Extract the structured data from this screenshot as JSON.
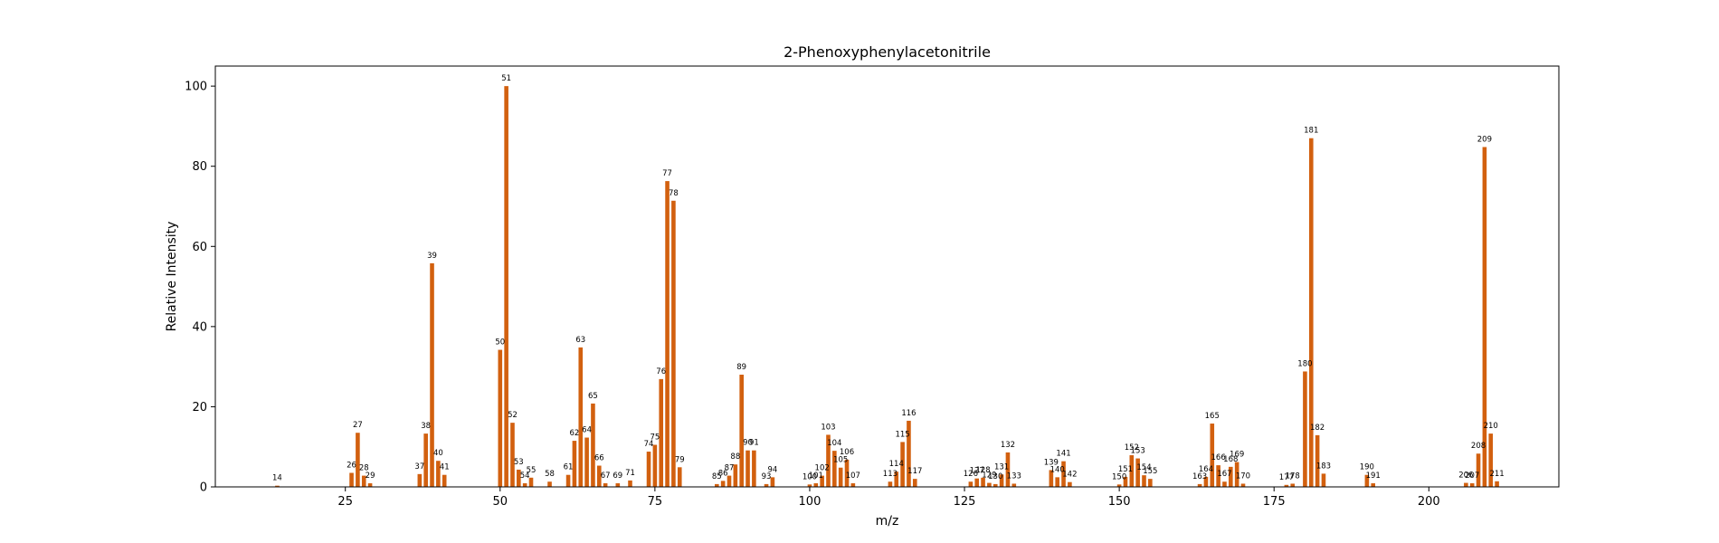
{
  "chart_data": {
    "type": "bar",
    "title": "2-Phenoxyphenylacetonitrile",
    "xlabel": "m/z",
    "ylabel": "Relative Intensity",
    "xlim": [
      4,
      221
    ],
    "ylim": [
      0,
      105
    ],
    "xticks": [
      25,
      50,
      75,
      100,
      125,
      150,
      175,
      200
    ],
    "yticks": [
      0,
      20,
      40,
      60,
      80,
      100
    ],
    "grid": false,
    "bar_color": "#d2600f",
    "series": [
      {
        "peaks": [
          {
            "mz": 14,
            "intensity": 0.3
          },
          {
            "mz": 26,
            "intensity": 3.5
          },
          {
            "mz": 27,
            "intensity": 13.5
          },
          {
            "mz": 28,
            "intensity": 2.8
          },
          {
            "mz": 29,
            "intensity": 0.9
          },
          {
            "mz": 37,
            "intensity": 3.2
          },
          {
            "mz": 38,
            "intensity": 13.3
          },
          {
            "mz": 39,
            "intensity": 55.8
          },
          {
            "mz": 40,
            "intensity": 6.5
          },
          {
            "mz": 41,
            "intensity": 3.0
          },
          {
            "mz": 50,
            "intensity": 34.2
          },
          {
            "mz": 51,
            "intensity": 100.0
          },
          {
            "mz": 52,
            "intensity": 16.0
          },
          {
            "mz": 53,
            "intensity": 4.3
          },
          {
            "mz": 54,
            "intensity": 0.9
          },
          {
            "mz": 55,
            "intensity": 2.3
          },
          {
            "mz": 58,
            "intensity": 1.3
          },
          {
            "mz": 61,
            "intensity": 3.0
          },
          {
            "mz": 62,
            "intensity": 11.5
          },
          {
            "mz": 63,
            "intensity": 34.8
          },
          {
            "mz": 64,
            "intensity": 12.3
          },
          {
            "mz": 65,
            "intensity": 20.8
          },
          {
            "mz": 66,
            "intensity": 5.3
          },
          {
            "mz": 67,
            "intensity": 0.9
          },
          {
            "mz": 69,
            "intensity": 0.9
          },
          {
            "mz": 71,
            "intensity": 1.6
          },
          {
            "mz": 74,
            "intensity": 8.8
          },
          {
            "mz": 75,
            "intensity": 10.5
          },
          {
            "mz": 76,
            "intensity": 26.9
          },
          {
            "mz": 77,
            "intensity": 76.3
          },
          {
            "mz": 78,
            "intensity": 71.4
          },
          {
            "mz": 79,
            "intensity": 4.9
          },
          {
            "mz": 85,
            "intensity": 0.7
          },
          {
            "mz": 86,
            "intensity": 1.5
          },
          {
            "mz": 87,
            "intensity": 2.8
          },
          {
            "mz": 88,
            "intensity": 5.6
          },
          {
            "mz": 89,
            "intensity": 28.0
          },
          {
            "mz": 90,
            "intensity": 9.1
          },
          {
            "mz": 91,
            "intensity": 9.1
          },
          {
            "mz": 93,
            "intensity": 0.7
          },
          {
            "mz": 94,
            "intensity": 2.4
          },
          {
            "mz": 100,
            "intensity": 0.6
          },
          {
            "mz": 101,
            "intensity": 0.9
          },
          {
            "mz": 102,
            "intensity": 2.8
          },
          {
            "mz": 103,
            "intensity": 13.0
          },
          {
            "mz": 104,
            "intensity": 9.0
          },
          {
            "mz": 105,
            "intensity": 4.8
          },
          {
            "mz": 106,
            "intensity": 6.8
          },
          {
            "mz": 107,
            "intensity": 0.9
          },
          {
            "mz": 113,
            "intensity": 1.3
          },
          {
            "mz": 114,
            "intensity": 3.8
          },
          {
            "mz": 115,
            "intensity": 11.2
          },
          {
            "mz": 116,
            "intensity": 16.5
          },
          {
            "mz": 117,
            "intensity": 2.0
          },
          {
            "mz": 126,
            "intensity": 1.3
          },
          {
            "mz": 127,
            "intensity": 2.1
          },
          {
            "mz": 128,
            "intensity": 2.3
          },
          {
            "mz": 129,
            "intensity": 1.0
          },
          {
            "mz": 130,
            "intensity": 0.7
          },
          {
            "mz": 131,
            "intensity": 3.1
          },
          {
            "mz": 132,
            "intensity": 8.6
          },
          {
            "mz": 133,
            "intensity": 0.8
          },
          {
            "mz": 139,
            "intensity": 4.2
          },
          {
            "mz": 140,
            "intensity": 2.4
          },
          {
            "mz": 141,
            "intensity": 6.4
          },
          {
            "mz": 142,
            "intensity": 1.2
          },
          {
            "mz": 150,
            "intensity": 0.6
          },
          {
            "mz": 151,
            "intensity": 2.5
          },
          {
            "mz": 152,
            "intensity": 7.9
          },
          {
            "mz": 153,
            "intensity": 7.1
          },
          {
            "mz": 154,
            "intensity": 2.9
          },
          {
            "mz": 155,
            "intensity": 2.0
          },
          {
            "mz": 163,
            "intensity": 0.7
          },
          {
            "mz": 164,
            "intensity": 2.5
          },
          {
            "mz": 165,
            "intensity": 15.8
          },
          {
            "mz": 166,
            "intensity": 5.4
          },
          {
            "mz": 167,
            "intensity": 1.3
          },
          {
            "mz": 168,
            "intensity": 5.0
          },
          {
            "mz": 169,
            "intensity": 6.2
          },
          {
            "mz": 170,
            "intensity": 0.8
          },
          {
            "mz": 177,
            "intensity": 0.5
          },
          {
            "mz": 178,
            "intensity": 0.8
          },
          {
            "mz": 180,
            "intensity": 28.8
          },
          {
            "mz": 181,
            "intensity": 87.0
          },
          {
            "mz": 182,
            "intensity": 12.9
          },
          {
            "mz": 183,
            "intensity": 3.3
          },
          {
            "mz": 190,
            "intensity": 3.0
          },
          {
            "mz": 191,
            "intensity": 0.9
          },
          {
            "mz": 206,
            "intensity": 1.0
          },
          {
            "mz": 207,
            "intensity": 0.9
          },
          {
            "mz": 208,
            "intensity": 8.3
          },
          {
            "mz": 209,
            "intensity": 84.8
          },
          {
            "mz": 210,
            "intensity": 13.3
          },
          {
            "mz": 211,
            "intensity": 1.4
          }
        ]
      }
    ]
  }
}
